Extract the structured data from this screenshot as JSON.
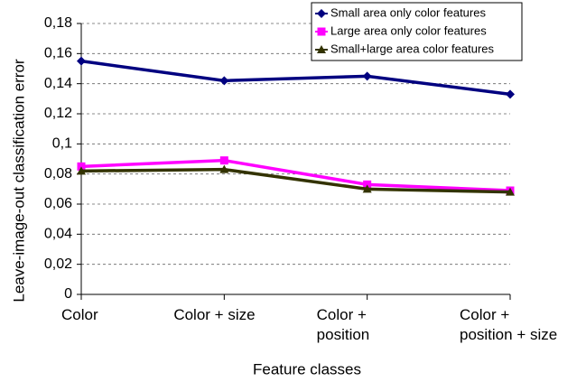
{
  "chart_data": {
    "type": "line",
    "x_label": "Feature classes",
    "y_label": "Leave-image-out classification error",
    "categories": [
      "Color",
      "Color + size",
      "Color +\nposition",
      "Color +\nposition  + size"
    ],
    "series": [
      {
        "name": "Small area only color features",
        "color": "#000080",
        "marker": "diamond",
        "values": [
          0.155,
          0.142,
          0.145,
          0.133
        ]
      },
      {
        "name": "Large area only color features",
        "color": "#ff00ff",
        "marker": "square",
        "values": [
          0.085,
          0.089,
          0.073,
          0.069
        ]
      },
      {
        "name": "Small+large area color features",
        "color": "#333300",
        "marker": "triangle",
        "values": [
          0.082,
          0.083,
          0.07,
          0.068
        ]
      }
    ],
    "ylim": [
      0,
      0.18
    ],
    "yticks": [
      0,
      {
        "value": 0.02,
        "label": "0,02"
      },
      {
        "value": 0.04,
        "label": "0,04"
      },
      {
        "value": 0.06,
        "label": "0,06"
      },
      {
        "value": 0.08,
        "label": "0,08"
      },
      {
        "value": 0.1,
        "label": "0,1"
      },
      {
        "value": 0.12,
        "label": "0,12"
      },
      {
        "value": 0.14,
        "label": "0,14"
      },
      {
        "value": 0.16,
        "label": "0,16"
      },
      {
        "value": 0.18,
        "label": "0,18"
      }
    ],
    "grid": true,
    "legend": "top-right"
  }
}
